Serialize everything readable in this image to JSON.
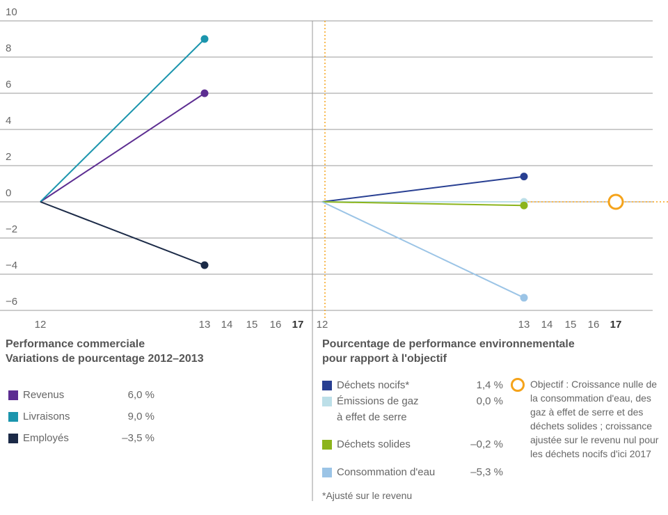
{
  "chart_data": [
    {
      "type": "line",
      "title": [
        "Performance commerciale",
        "Variations de pourcentage 2012–2013"
      ],
      "categories": [
        "12",
        "13",
        "14",
        "15",
        "16",
        "17"
      ],
      "ylim": [
        -6,
        10
      ],
      "yticks": [
        10,
        8,
        6,
        4,
        2,
        0,
        {
          "value": -2,
          "label": "−2"
        },
        {
          "value": -4,
          "label": "−4"
        },
        {
          "value": -6,
          "label": "−6"
        }
      ],
      "grid": true,
      "series": [
        {
          "name": "Revenus",
          "color": "#5c2d91",
          "values": [
            0,
            6.0,
            null,
            null,
            null,
            null
          ],
          "value_labels": [
            null,
            "6,0 %",
            null,
            null,
            null,
            null
          ]
        },
        {
          "name": "Livraisons",
          "color": "#1b95ad",
          "values": [
            0,
            9.0,
            null,
            null,
            null,
            null
          ],
          "value_labels": [
            null,
            "9,0 %",
            null,
            null,
            null,
            null
          ]
        },
        {
          "name": "Employés",
          "color": "#1b2a47",
          "values": [
            0,
            -3.5,
            null,
            null,
            null,
            null
          ],
          "value_labels": [
            null,
            "–3,5 %",
            null,
            null,
            null,
            null
          ]
        }
      ]
    },
    {
      "type": "line",
      "title": [
        "Pourcentage de performance environnementale",
        "pour rapport à l'objectif"
      ],
      "categories": [
        "12",
        "13",
        "14",
        "15",
        "16",
        "17"
      ],
      "ylim": [
        -6,
        10
      ],
      "series": [
        {
          "name": "Déchets nocifs*",
          "color": "#283f92",
          "values": [
            0,
            1.4,
            null,
            null,
            null,
            null
          ],
          "value_labels": [
            null,
            "1,4 %",
            null,
            null,
            null,
            null
          ]
        },
        {
          "name": "Émissions de gaz\nà effet de serre",
          "color": "#bcdfe8",
          "values": [
            0,
            0.0,
            null,
            null,
            null,
            null
          ],
          "value_labels": [
            null,
            "0,0 %",
            null,
            null,
            null,
            null
          ]
        },
        {
          "name": "Déchets solides",
          "color": "#8cb41c",
          "values": [
            0,
            -0.2,
            null,
            null,
            null,
            null
          ],
          "value_labels": [
            null,
            "–0,2 %",
            null,
            null,
            null,
            null
          ]
        },
        {
          "name": "Consommation d'eau",
          "color": "#9bc4e6",
          "values": [
            0,
            -5.3,
            null,
            null,
            null,
            null
          ],
          "value_labels": [
            null,
            "–5,3 %",
            null,
            null,
            null,
            null
          ]
        }
      ],
      "target": {
        "category": "17",
        "value": 0,
        "color": "#f5a31a",
        "label": "Objectif : Croissance nulle de la consommation d'eau, des gaz à effet de serre et des déchets solides ; croissance ajustée sur le revenu nul pour les déchets nocifs d'ici 2017"
      },
      "footnote": "*Ajusté sur le revenu"
    }
  ]
}
